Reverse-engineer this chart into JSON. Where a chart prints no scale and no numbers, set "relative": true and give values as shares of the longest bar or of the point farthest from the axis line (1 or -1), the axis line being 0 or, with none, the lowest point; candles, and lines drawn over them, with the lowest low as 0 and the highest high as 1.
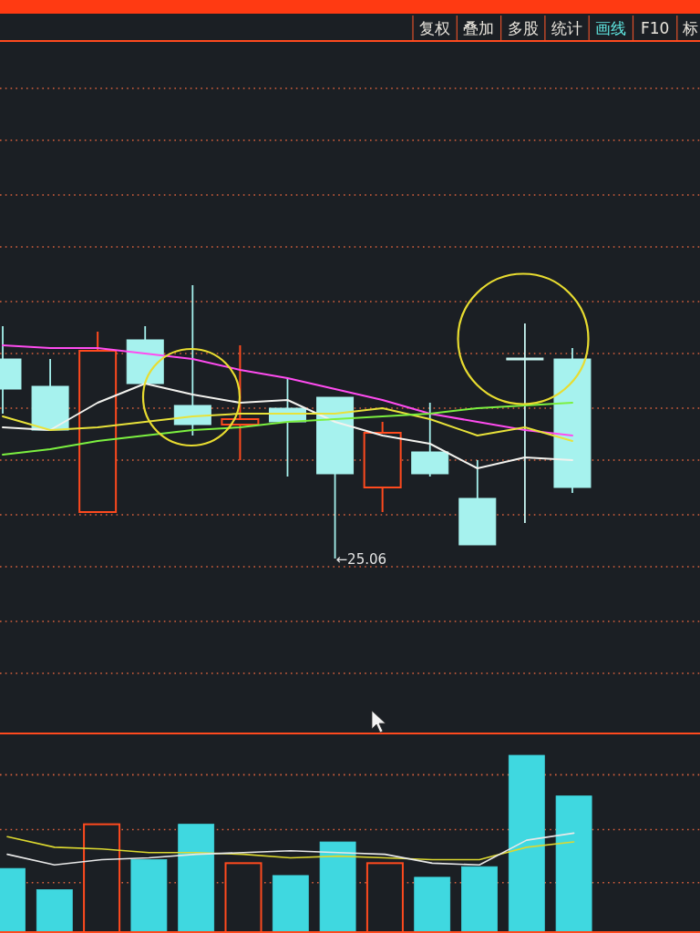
{
  "chart_data": [
    {
      "type": "other",
      "annotations": [
        "复权",
        "叠加",
        "多股",
        "统计",
        "画线",
        "F10",
        "标"
      ]
    },
    {
      "type": "candlestick",
      "categories": [
        null,
        null,
        null,
        null,
        null,
        null,
        null,
        null,
        null,
        null,
        null,
        null,
        null
      ],
      "relative": true,
      "ohlc": [
        [
          0.73,
          0.85,
          0.53,
          0.62
        ],
        [
          0.63,
          0.73,
          0.47,
          0.47
        ],
        [
          0.17,
          0.83,
          0.17,
          0.76
        ],
        [
          0.8,
          0.85,
          0.64,
          0.64
        ],
        [
          0.56,
          1,
          0.45,
          0.49
        ],
        [
          0.49,
          0.78,
          0.36,
          0.51
        ],
        [
          0.55,
          0.66,
          0.3,
          0.5
        ],
        [
          0.59,
          0.59,
          0,
          0.31
        ],
        [
          0.26,
          0.5,
          0.17,
          0.46
        ],
        [
          0.39,
          0.57,
          0.3,
          0.31
        ],
        [
          0.22,
          0.36,
          0.05,
          0.05
        ],
        [
          0.73,
          0.86,
          0.13,
          0.73
        ],
        [
          0.73,
          0.77,
          0.24,
          0.26
        ]
      ],
      "colors": [
        "#a6f2ee",
        "#a6f2ee",
        "#ff4a1e",
        "#a6f2ee",
        "#a6f2ee",
        "#ff4a1e",
        "#a6f2ee",
        "#a6f2ee",
        "#ff4a1e",
        "#a6f2ee",
        "#a6f2ee",
        "#c8f6f2",
        "#a6f2ee"
      ],
      "series": [
        {
          "type": "line",
          "color": "#ff4cf0",
          "values": [
            0.78,
            0.77,
            0.77,
            0.75,
            0.73,
            0.69,
            0.66,
            0.62,
            0.58,
            0.53,
            0.5,
            0.47,
            0.45
          ]
        },
        {
          "type": "line",
          "color": "#f2f2ee",
          "values": [
            0.48,
            0.47,
            0.57,
            0.64,
            0.6,
            0.57,
            0.58,
            0.5,
            0.45,
            0.42,
            0.33,
            0.37,
            0.36
          ]
        },
        {
          "type": "line",
          "color": "#e8e23a",
          "values": [
            0.52,
            0.47,
            0.48,
            0.5,
            0.52,
            0.53,
            0.53,
            0.53,
            0.55,
            0.51,
            0.45,
            0.48,
            0.43
          ]
        },
        {
          "type": "line",
          "color": "#7cf040",
          "values": [
            0.38,
            0.4,
            0.43,
            0.45,
            0.47,
            0.48,
            0.5,
            0.51,
            0.52,
            0.53,
            0.55,
            0.56,
            0.57
          ]
        }
      ],
      "ref_lines": [
        {
          "axis": "y",
          "value": 1.72,
          "color": "#d9623e",
          "line_style": "dotted"
        },
        {
          "axis": "y",
          "value": 1.53,
          "color": "#d9623e",
          "line_style": "dotted"
        },
        {
          "axis": "y",
          "value": 1.33,
          "color": "#d9623e",
          "line_style": "dotted"
        },
        {
          "axis": "y",
          "value": 1.14,
          "color": "#d9623e",
          "line_style": "dotted"
        },
        {
          "axis": "y",
          "value": 0.94,
          "color": "#d9623e",
          "line_style": "dotted"
        },
        {
          "axis": "y",
          "value": 0.75,
          "color": "#d9623e",
          "line_style": "dotted"
        },
        {
          "axis": "y",
          "value": 0.55,
          "color": "#d9623e",
          "line_style": "dotted"
        },
        {
          "axis": "y",
          "value": 0.36,
          "color": "#d9623e",
          "line_style": "dotted"
        },
        {
          "axis": "y",
          "value": 0.16,
          "color": "#d9623e",
          "line_style": "dotted"
        },
        {
          "axis": "y",
          "value": -0.03,
          "color": "#d9623e",
          "line_style": "dotted"
        },
        {
          "axis": "y",
          "value": -0.23,
          "color": "#d9623e",
          "line_style": "dotted"
        },
        {
          "axis": "y",
          "value": -0.42,
          "color": "#d9623e",
          "line_style": "dotted"
        }
      ],
      "annotations": [
        "←25.06"
      ]
    },
    {
      "type": "bar",
      "categories": [
        null,
        null,
        null,
        null,
        null,
        null,
        null,
        null,
        null,
        null,
        null,
        null,
        null
      ],
      "relative": true,
      "series": [
        {
          "type": "bar",
          "colors": [
            "#3fd8e0",
            "#3fd8e0",
            "#ff4a1e",
            "#3fd8e0",
            "#3fd8e0",
            "#ff4a1e",
            "#3fd8e0",
            "#3fd8e0",
            "#ff4a1e",
            "#3fd8e0",
            "#3fd8e0",
            "#3fd8e0",
            "#3fd8e0"
          ],
          "values": [
            0.36,
            0.24,
            0.61,
            0.41,
            0.61,
            0.39,
            0.32,
            0.51,
            0.39,
            0.31,
            0.37,
            1,
            0.77
          ]
        },
        {
          "type": "line",
          "color": "#dcd830",
          "values": [
            0.54,
            0.48,
            0.47,
            0.45,
            0.45,
            0.44,
            0.42,
            0.43,
            0.42,
            0.41,
            0.41,
            0.48,
            0.51
          ]
        },
        {
          "type": "line",
          "color": "#e8e8e8",
          "values": [
            0.44,
            0.38,
            0.41,
            0.42,
            0.44,
            0.45,
            0.46,
            0.45,
            0.44,
            0.39,
            0.38,
            0.52,
            0.56
          ]
        }
      ],
      "ref_lines": [
        {
          "axis": "y",
          "value": 0.89,
          "color": "#d9623e",
          "line_style": "dotted"
        },
        {
          "axis": "y",
          "value": 0.58,
          "color": "#d9623e",
          "line_style": "dotted"
        },
        {
          "axis": "y",
          "value": 0.28,
          "color": "#d9623e",
          "line_style": "dotted"
        }
      ]
    }
  ]
}
